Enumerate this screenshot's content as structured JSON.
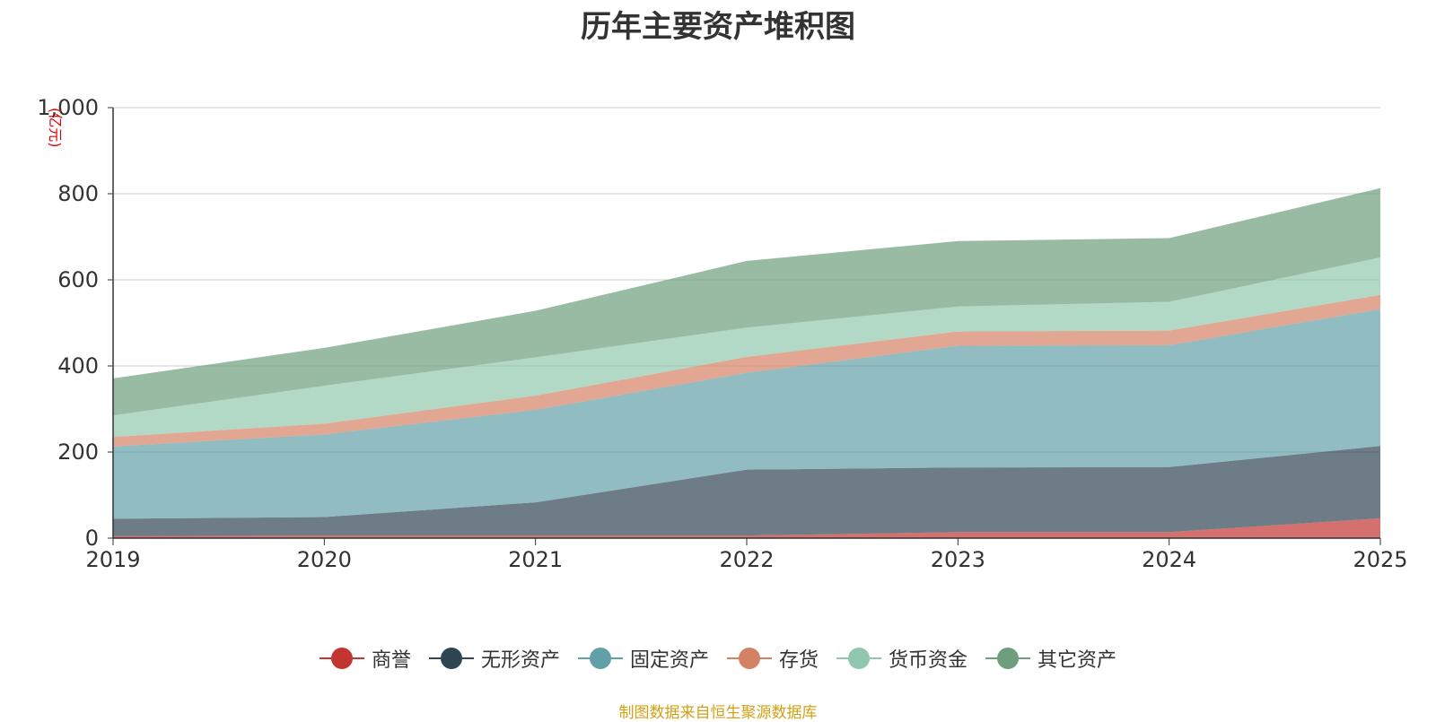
{
  "chart_data": {
    "type": "area",
    "stacked": true,
    "title": "历年主要资产堆积图",
    "ylabel": "(亿元)",
    "xlabel": "",
    "ylim": [
      0,
      1000
    ],
    "yticks": [
      "0",
      "200",
      "400",
      "600",
      "800",
      "1,000"
    ],
    "categories": [
      "2019",
      "2020",
      "2021",
      "2022",
      "2023",
      "2024",
      "2025"
    ],
    "series": [
      {
        "name": "商誉",
        "color": "#c23531",
        "values": [
          5,
          6,
          6,
          6,
          14,
          14,
          46
        ]
      },
      {
        "name": "无形资产",
        "color": "#2f4554",
        "values": [
          40,
          43,
          77,
          153,
          150,
          151,
          168
        ]
      },
      {
        "name": "固定资产",
        "color": "#61a0a8",
        "values": [
          168,
          192,
          215,
          225,
          283,
          283,
          318
        ]
      },
      {
        "name": "存货",
        "color": "#d48265",
        "values": [
          22,
          25,
          33,
          37,
          33,
          34,
          33
        ]
      },
      {
        "name": "货币资金",
        "color": "#91c7ae",
        "values": [
          50,
          88,
          89,
          68,
          58,
          67,
          87
        ]
      },
      {
        "name": "其它资产",
        "color": "#6e9e7d",
        "values": [
          86,
          88,
          108,
          155,
          152,
          148,
          161
        ]
      }
    ],
    "legend_position": "bottom",
    "grid": true
  },
  "source_note": "制图数据来自恒生聚源数据库"
}
